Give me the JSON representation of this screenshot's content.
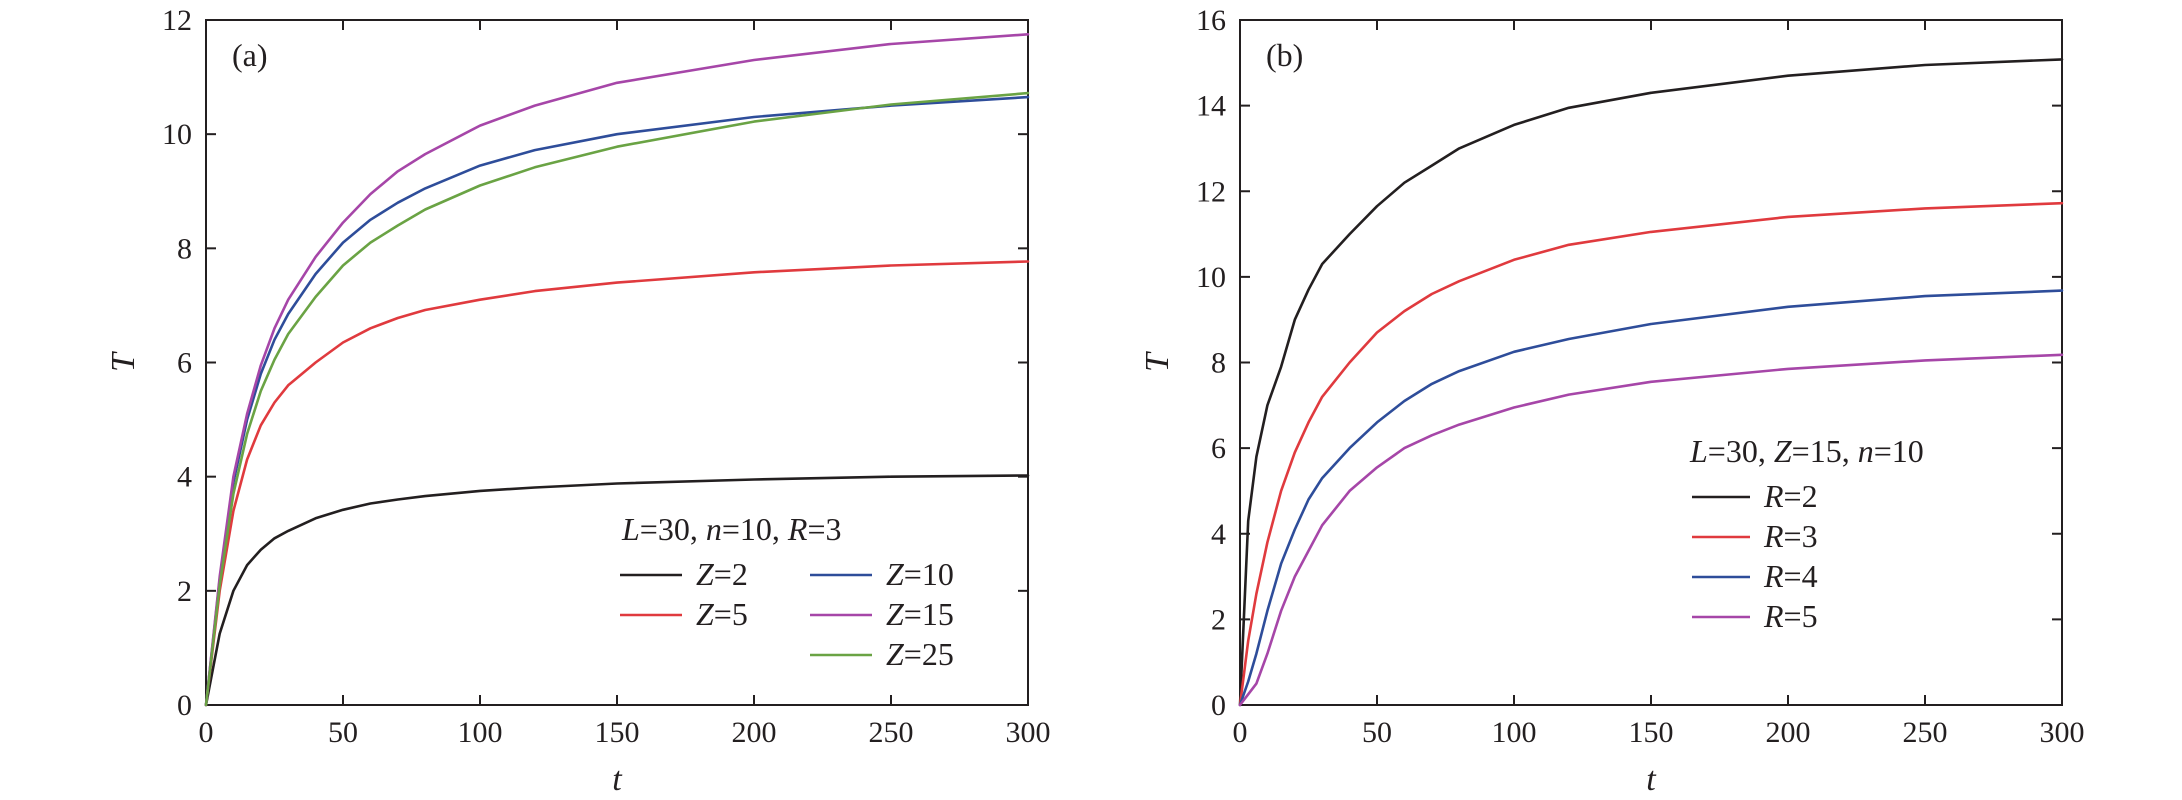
{
  "chart_data": [
    {
      "type": "line",
      "panel_label": "(a)",
      "xlabel": "t",
      "ylabel": "T",
      "xlim": [
        0,
        300
      ],
      "ylim": [
        0,
        12
      ],
      "xticks": [
        0,
        50,
        100,
        150,
        200,
        250,
        300
      ],
      "yticks": [
        0,
        2,
        4,
        6,
        8,
        10,
        12
      ],
      "grid": false,
      "legend_placement": "bottom-right",
      "legend_columns": 2,
      "legend_title": {
        "parts": [
          {
            "text": "L",
            "italic": true
          },
          {
            "text": "=30, ",
            "italic": false
          },
          {
            "text": "n",
            "italic": true
          },
          {
            "text": "=10, ",
            "italic": false
          },
          {
            "text": "R",
            "italic": true
          },
          {
            "text": "=3",
            "italic": false
          }
        ]
      },
      "series": [
        {
          "param": "Z",
          "value": "2",
          "color": "#231f20",
          "x": [
            0,
            5,
            10,
            15,
            20,
            25,
            30,
            40,
            50,
            60,
            70,
            80,
            100,
            120,
            150,
            200,
            250,
            300
          ],
          "y": [
            0,
            1.25,
            2.0,
            2.45,
            2.72,
            2.92,
            3.05,
            3.27,
            3.42,
            3.53,
            3.6,
            3.66,
            3.75,
            3.81,
            3.88,
            3.95,
            4.0,
            4.02
          ]
        },
        {
          "param": "Z",
          "value": "5",
          "color": "#e03a3e",
          "x": [
            0,
            5,
            10,
            15,
            20,
            25,
            30,
            40,
            50,
            60,
            70,
            80,
            100,
            120,
            150,
            200,
            250,
            300
          ],
          "y": [
            0,
            2.0,
            3.4,
            4.3,
            4.9,
            5.3,
            5.6,
            6.0,
            6.35,
            6.6,
            6.78,
            6.92,
            7.1,
            7.25,
            7.4,
            7.58,
            7.7,
            7.77
          ]
        },
        {
          "param": "Z",
          "value": "10",
          "color": "#2e4d9a",
          "x": [
            0,
            5,
            10,
            15,
            20,
            25,
            30,
            40,
            50,
            60,
            70,
            80,
            100,
            120,
            150,
            200,
            250,
            300
          ],
          "y": [
            0,
            2.2,
            3.9,
            5.0,
            5.8,
            6.4,
            6.85,
            7.55,
            8.1,
            8.5,
            8.8,
            9.05,
            9.45,
            9.72,
            10.0,
            10.3,
            10.5,
            10.65
          ]
        },
        {
          "param": "Z",
          "value": "15",
          "color": "#a646a8",
          "x": [
            0,
            5,
            10,
            15,
            20,
            25,
            30,
            40,
            50,
            60,
            70,
            80,
            100,
            120,
            150,
            200,
            250,
            300
          ],
          "y": [
            0,
            2.25,
            4.0,
            5.1,
            5.95,
            6.6,
            7.1,
            7.85,
            8.45,
            8.95,
            9.35,
            9.65,
            10.15,
            10.5,
            10.9,
            11.3,
            11.58,
            11.75
          ]
        },
        {
          "param": "Z",
          "value": "25",
          "color": "#6aa344",
          "x": [
            0,
            5,
            10,
            15,
            20,
            25,
            30,
            40,
            50,
            60,
            70,
            80,
            100,
            120,
            150,
            200,
            250,
            300
          ],
          "y": [
            0,
            2.1,
            3.7,
            4.75,
            5.5,
            6.05,
            6.5,
            7.15,
            7.7,
            8.1,
            8.4,
            8.68,
            9.1,
            9.42,
            9.78,
            10.22,
            10.52,
            10.72
          ]
        }
      ]
    },
    {
      "type": "line",
      "panel_label": "(b)",
      "xlabel": "t",
      "ylabel": "T",
      "xlim": [
        0,
        300
      ],
      "ylim": [
        0,
        16
      ],
      "xticks": [
        0,
        50,
        100,
        150,
        200,
        250,
        300
      ],
      "yticks": [
        0,
        2,
        4,
        6,
        8,
        10,
        12,
        14,
        16
      ],
      "grid": false,
      "legend_placement": "center-right",
      "legend_columns": 1,
      "legend_title": {
        "parts": [
          {
            "text": "L",
            "italic": true
          },
          {
            "text": "=30, ",
            "italic": false
          },
          {
            "text": "Z",
            "italic": true
          },
          {
            "text": "=15, ",
            "italic": false
          },
          {
            "text": "n",
            "italic": true
          },
          {
            "text": "=10",
            "italic": false
          }
        ]
      },
      "series": [
        {
          "param": "R",
          "value": "2",
          "color": "#231f20",
          "x": [
            0,
            3,
            6,
            10,
            15,
            20,
            25,
            30,
            40,
            50,
            60,
            70,
            80,
            100,
            120,
            150,
            200,
            250,
            300
          ],
          "y": [
            0,
            4.3,
            5.8,
            7.0,
            7.9,
            9.0,
            9.7,
            10.3,
            11.0,
            11.65,
            12.2,
            12.6,
            13.0,
            13.55,
            13.95,
            14.3,
            14.7,
            14.95,
            15.08
          ]
        },
        {
          "param": "R",
          "value": "3",
          "color": "#e03a3e",
          "x": [
            0,
            3,
            6,
            10,
            15,
            20,
            25,
            30,
            40,
            50,
            60,
            70,
            80,
            100,
            120,
            150,
            200,
            250,
            300
          ],
          "y": [
            0,
            1.5,
            2.6,
            3.8,
            5.0,
            5.9,
            6.6,
            7.2,
            8.0,
            8.7,
            9.2,
            9.6,
            9.9,
            10.4,
            10.75,
            11.05,
            11.4,
            11.6,
            11.72
          ]
        },
        {
          "param": "R",
          "value": "4",
          "color": "#2e4d9a",
          "x": [
            0,
            3,
            6,
            10,
            15,
            20,
            25,
            30,
            40,
            50,
            60,
            70,
            80,
            100,
            120,
            150,
            200,
            250,
            300
          ],
          "y": [
            0,
            0.55,
            1.2,
            2.2,
            3.3,
            4.1,
            4.8,
            5.3,
            6.0,
            6.6,
            7.1,
            7.5,
            7.8,
            8.25,
            8.55,
            8.9,
            9.3,
            9.55,
            9.68
          ]
        },
        {
          "param": "R",
          "value": "5",
          "color": "#a646a8",
          "x": [
            0,
            3,
            6,
            10,
            15,
            20,
            25,
            30,
            40,
            50,
            60,
            70,
            80,
            100,
            120,
            150,
            200,
            250,
            300
          ],
          "y": [
            0,
            0.25,
            0.5,
            1.2,
            2.2,
            3.0,
            3.6,
            4.2,
            5.0,
            5.55,
            6.0,
            6.3,
            6.55,
            6.95,
            7.25,
            7.55,
            7.85,
            8.05,
            8.18
          ]
        }
      ]
    }
  ]
}
